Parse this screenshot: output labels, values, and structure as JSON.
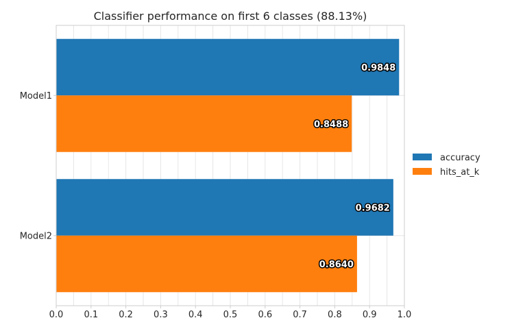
{
  "chart_data": {
    "type": "bar",
    "orientation": "horizontal",
    "title": "Classifier performance on first 6 classes (88.13%)",
    "categories": [
      "Model1",
      "Model2"
    ],
    "series": [
      {
        "name": "accuracy",
        "color": "#1f77b4",
        "values": [
          0.9848,
          0.9682
        ],
        "labels": [
          "0.9848",
          "0.9682"
        ]
      },
      {
        "name": "hits_at_k",
        "color": "#ff7f0e",
        "values": [
          0.8488,
          0.864
        ],
        "labels": [
          "0.8488",
          "0.8640"
        ]
      }
    ],
    "xlim": [
      0.0,
      1.0
    ],
    "xticks": [
      0.0,
      0.1,
      0.2,
      0.3,
      0.4,
      0.5,
      0.6,
      0.7,
      0.8,
      0.9,
      1.0
    ],
    "xtick_labels": [
      "0.0",
      "0.1",
      "0.2",
      "0.3",
      "0.4",
      "0.5",
      "0.6",
      "0.7",
      "0.8",
      "0.9",
      "1.0"
    ],
    "xlabel": "",
    "ylabel": "",
    "grid": true,
    "legend_position": "center-right"
  }
}
